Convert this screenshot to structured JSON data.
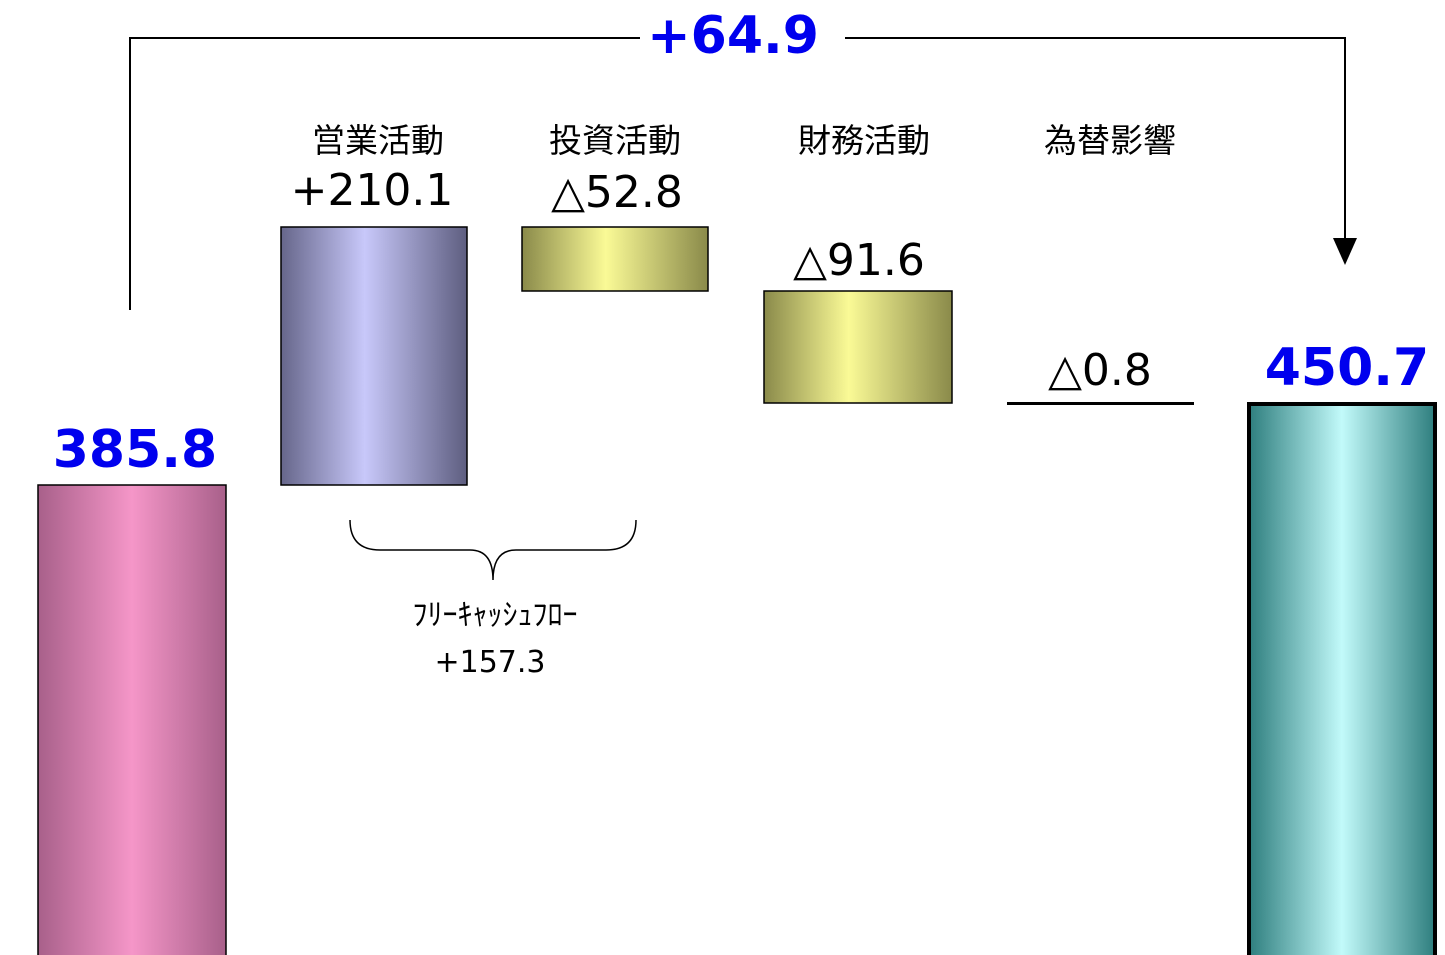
{
  "chart_data": {
    "type": "waterfall",
    "start": {
      "value": 385.8,
      "label": "385.8",
      "color": "#f596c8"
    },
    "end": {
      "value": 450.7,
      "label": "450.7",
      "color": "#c2fafa"
    },
    "steps": [
      {
        "category": "営業活動",
        "value": 210.1,
        "label": "+210.1",
        "color": "#c8c8fa"
      },
      {
        "category": "投資活動",
        "value": -52.8,
        "label": "△52.8",
        "color": "#fafa96"
      },
      {
        "category": "財務活動",
        "value": -91.6,
        "label": "△91.6",
        "color": "#fafa96"
      },
      {
        "category": "為替影響",
        "value": -0.8,
        "label": "△0.8",
        "color": "#000000"
      }
    ],
    "total_change": {
      "value": 64.9,
      "label": "+64.9"
    },
    "free_cash_flow": {
      "label": "ﾌﾘｰｷｬｯｼｭﾌﾛｰ",
      "value": 157.3,
      "value_label": "+157.3"
    },
    "accent_color": "#0000ee"
  }
}
